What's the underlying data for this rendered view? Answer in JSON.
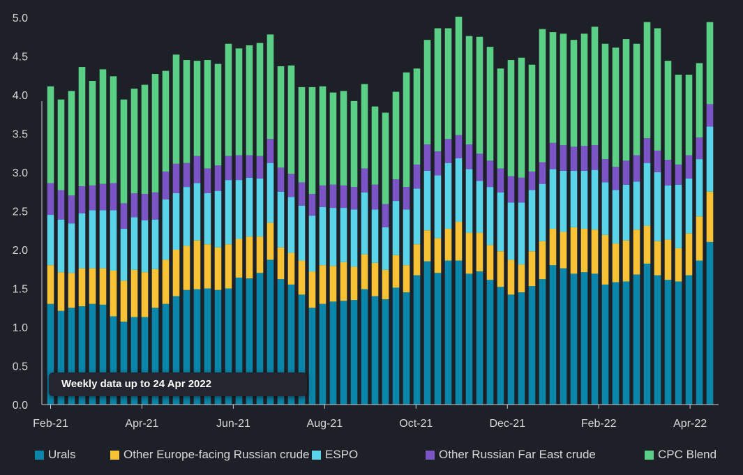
{
  "colors": {
    "background": "#1e2027",
    "axis": "#c9ccd1",
    "urals": "#0b86ab",
    "other_europe": "#f7c335",
    "espo": "#5ad4e8",
    "far_east": "#7b55c6",
    "cpc": "#5bcf86"
  },
  "note": "Weekly data up to 24 Apr 2022",
  "chart_data": {
    "type": "bar",
    "stacked": true,
    "ylim": [
      0,
      5.0
    ],
    "yticks": [
      "0.0",
      "0.5",
      "1.0",
      "1.5",
      "2.0",
      "2.5",
      "3.0",
      "3.5",
      "4.0",
      "4.5",
      "5.0"
    ],
    "xtick_labels": [
      "Feb-21",
      "Apr-21",
      "Jun-21",
      "Aug-21",
      "Oct-21",
      "Dec-21",
      "Feb-22",
      "Apr-22"
    ],
    "grid": false,
    "legend_position": "bottom",
    "series": [
      {
        "name": "Urals",
        "color_key": "urals",
        "values": [
          1.3,
          1.21,
          1.25,
          1.27,
          1.3,
          1.29,
          1.14,
          1.07,
          1.13,
          1.13,
          1.25,
          1.3,
          1.4,
          1.48,
          1.49,
          1.5,
          1.48,
          1.5,
          1.64,
          1.63,
          1.7,
          1.87,
          1.62,
          1.55,
          1.42,
          1.25,
          1.3,
          1.33,
          1.34,
          1.35,
          1.49,
          1.4,
          1.36,
          1.51,
          1.45,
          1.67,
          1.85,
          1.7,
          1.86,
          1.86,
          1.69,
          1.72,
          1.61,
          1.52,
          1.42,
          1.45,
          1.53,
          1.62,
          1.8,
          1.76,
          1.69,
          1.71,
          1.69,
          1.55,
          1.58,
          1.59,
          1.68,
          1.82,
          1.67,
          1.61,
          1.59,
          1.67,
          1.86,
          2.1
        ]
      },
      {
        "name": "Other Europe-facing Russian crude",
        "color_key": "other_europe",
        "values": [
          0.5,
          0.5,
          0.45,
          0.49,
          0.46,
          0.47,
          0.59,
          0.53,
          0.61,
          0.58,
          0.5,
          0.57,
          0.6,
          0.57,
          0.63,
          0.57,
          0.55,
          0.57,
          0.5,
          0.54,
          0.47,
          0.48,
          0.41,
          0.41,
          0.44,
          0.47,
          0.5,
          0.46,
          0.5,
          0.43,
          0.45,
          0.43,
          0.38,
          0.42,
          0.35,
          0.4,
          0.4,
          0.45,
          0.41,
          0.5,
          0.53,
          0.5,
          0.45,
          0.46,
          0.45,
          0.36,
          0.45,
          0.49,
          0.47,
          0.47,
          0.6,
          0.56,
          0.57,
          0.64,
          0.5,
          0.53,
          0.58,
          0.49,
          0.44,
          0.52,
          0.43,
          0.54,
          0.57,
          0.65
        ]
      },
      {
        "name": "ESPO",
        "color_key": "espo",
        "values": [
          0.65,
          0.68,
          0.64,
          0.71,
          0.75,
          0.75,
          0.78,
          0.67,
          0.68,
          0.67,
          0.64,
          0.78,
          0.73,
          0.76,
          0.74,
          0.66,
          0.73,
          0.83,
          0.76,
          0.76,
          0.75,
          0.77,
          0.72,
          0.72,
          0.71,
          0.72,
          0.75,
          0.75,
          0.7,
          0.74,
          0.8,
          0.69,
          0.55,
          0.7,
          0.72,
          0.72,
          0.77,
          0.81,
          0.85,
          0.82,
          0.82,
          0.67,
          0.75,
          0.76,
          0.74,
          0.8,
          0.79,
          0.74,
          0.77,
          0.79,
          0.73,
          0.75,
          0.77,
          0.68,
          0.69,
          0.72,
          0.62,
          0.81,
          0.89,
          0.7,
          0.82,
          0.71,
          0.74,
          0.84
        ]
      },
      {
        "name": "Other Russian Far East crude",
        "color_key": "far_east",
        "values": [
          0.41,
          0.38,
          0.36,
          0.35,
          0.32,
          0.34,
          0.35,
          0.33,
          0.31,
          0.34,
          0.35,
          0.36,
          0.38,
          0.31,
          0.35,
          0.32,
          0.33,
          0.31,
          0.32,
          0.29,
          0.29,
          0.31,
          0.31,
          0.3,
          0.3,
          0.28,
          0.28,
          0.3,
          0.29,
          0.29,
          0.31,
          0.32,
          0.3,
          0.28,
          0.29,
          0.31,
          0.34,
          0.31,
          0.31,
          0.3,
          0.32,
          0.35,
          0.34,
          0.31,
          0.34,
          0.32,
          0.24,
          0.28,
          0.34,
          0.33,
          0.31,
          0.32,
          0.32,
          0.3,
          0.3,
          0.31,
          0.34,
          0.32,
          0.28,
          0.33,
          0.26,
          0.3,
          0.28,
          0.29
        ]
      },
      {
        "name": "CPC Blend",
        "color_key": "cpc",
        "values": [
          1.25,
          1.17,
          1.35,
          1.54,
          1.35,
          1.48,
          1.38,
          1.34,
          1.35,
          1.41,
          1.53,
          1.3,
          1.41,
          1.33,
          1.23,
          1.4,
          1.31,
          1.45,
          1.38,
          1.42,
          1.46,
          1.35,
          1.31,
          1.4,
          1.23,
          1.38,
          1.28,
          1.19,
          1.22,
          1.11,
          1.09,
          1.01,
          1.18,
          1.13,
          1.48,
          1.24,
          1.35,
          1.59,
          1.43,
          1.53,
          1.4,
          1.51,
          1.47,
          1.29,
          1.5,
          1.55,
          1.38,
          1.72,
          1.43,
          1.44,
          1.38,
          1.45,
          1.53,
          1.49,
          1.54,
          1.57,
          1.44,
          1.5,
          1.58,
          1.28,
          1.16,
          1.04,
          0.96,
          1.06
        ]
      }
    ]
  }
}
